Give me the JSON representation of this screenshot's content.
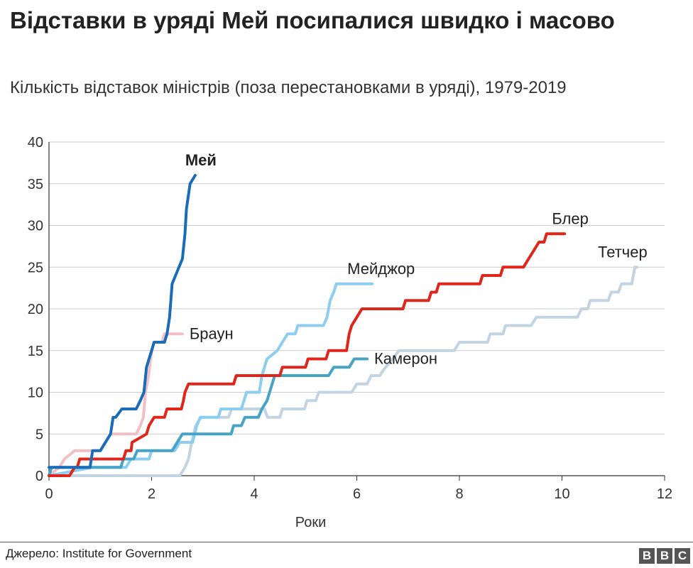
{
  "title": "Відставки в уряді Мей посипалися швидко і масово",
  "subtitle": "Кількість відставок міністрів (поза перестановками в уряді), 1979-2019",
  "source": "Джерело: Institute for Government",
  "logo_letters": [
    "B",
    "B",
    "C"
  ],
  "chart_data": {
    "type": "line",
    "xlabel": "Роки",
    "ylabel": "",
    "xlim": [
      0,
      12
    ],
    "ylim": [
      0,
      40
    ],
    "xticks": [
      0,
      2,
      4,
      6,
      8,
      10,
      12
    ],
    "yticks": [
      0,
      5,
      10,
      15,
      20,
      25,
      30,
      35,
      40
    ],
    "grid": "horizontal",
    "series": [
      {
        "name": "Тетчер",
        "color": "#c2d4e2",
        "bold": false,
        "label_align": "start",
        "points": [
          [
            0,
            0
          ],
          [
            2.55,
            0
          ],
          [
            2.65,
            1
          ],
          [
            2.72,
            2
          ],
          [
            2.78,
            4
          ],
          [
            2.86,
            6
          ],
          [
            2.96,
            7
          ],
          [
            3.5,
            7
          ],
          [
            3.56,
            8
          ],
          [
            4.2,
            8
          ],
          [
            4.26,
            7
          ],
          [
            4.5,
            7
          ],
          [
            4.55,
            8
          ],
          [
            4.98,
            8
          ],
          [
            5.03,
            9
          ],
          [
            5.2,
            9
          ],
          [
            5.26,
            10
          ],
          [
            5.9,
            10
          ],
          [
            6.0,
            11
          ],
          [
            6.2,
            11
          ],
          [
            6.28,
            12
          ],
          [
            6.45,
            12
          ],
          [
            6.5,
            12.5
          ],
          [
            6.56,
            13
          ],
          [
            6.7,
            14
          ],
          [
            6.82,
            15
          ],
          [
            7.9,
            15
          ],
          [
            8.0,
            16
          ],
          [
            8.55,
            16
          ],
          [
            8.6,
            17
          ],
          [
            8.85,
            17
          ],
          [
            8.9,
            18
          ],
          [
            9.4,
            18
          ],
          [
            9.5,
            19
          ],
          [
            10.3,
            19
          ],
          [
            10.38,
            20
          ],
          [
            10.5,
            20
          ],
          [
            10.55,
            21
          ],
          [
            10.9,
            21
          ],
          [
            10.96,
            22
          ],
          [
            11.1,
            22
          ],
          [
            11.16,
            23
          ],
          [
            11.36,
            23
          ],
          [
            11.42,
            25
          ],
          [
            11.46,
            25
          ]
        ]
      },
      {
        "name": "Браун",
        "color": "#f2c0c4",
        "bold": false,
        "label_align": "start",
        "points": [
          [
            0,
            0
          ],
          [
            0.2,
            1
          ],
          [
            0.3,
            2
          ],
          [
            0.5,
            3
          ],
          [
            1.0,
            3
          ],
          [
            1.1,
            4
          ],
          [
            1.2,
            5
          ],
          [
            1.7,
            5
          ],
          [
            1.78,
            6
          ],
          [
            1.84,
            7
          ],
          [
            1.88,
            10
          ],
          [
            1.94,
            12
          ],
          [
            1.98,
            14
          ],
          [
            2.04,
            16
          ],
          [
            2.2,
            16
          ],
          [
            2.25,
            17
          ],
          [
            2.6,
            17
          ]
        ]
      },
      {
        "name": "Мейджор",
        "color": "#8dcdf0",
        "bold": false,
        "label_align": "start",
        "points": [
          [
            0,
            0
          ],
          [
            0.85,
            1
          ],
          [
            1.5,
            1
          ],
          [
            1.6,
            2
          ],
          [
            1.95,
            2
          ],
          [
            2.0,
            3
          ],
          [
            2.45,
            3
          ],
          [
            2.55,
            4
          ],
          [
            2.8,
            4
          ],
          [
            2.88,
            6
          ],
          [
            2.95,
            7
          ],
          [
            3.3,
            7
          ],
          [
            3.35,
            8
          ],
          [
            3.75,
            8
          ],
          [
            3.8,
            9
          ],
          [
            3.85,
            10
          ],
          [
            4.1,
            10
          ],
          [
            4.15,
            12
          ],
          [
            4.25,
            14
          ],
          [
            4.45,
            15
          ],
          [
            4.55,
            16
          ],
          [
            4.65,
            17
          ],
          [
            4.8,
            17
          ],
          [
            4.85,
            18
          ],
          [
            5.35,
            18
          ],
          [
            5.42,
            19
          ],
          [
            5.48,
            21
          ],
          [
            5.55,
            22
          ],
          [
            5.6,
            23
          ],
          [
            6.3,
            23
          ]
        ]
      },
      {
        "name": "Камерон",
        "color": "#45a3c5",
        "bold": false,
        "label_align": "start",
        "points": [
          [
            0,
            0
          ],
          [
            0.05,
            1
          ],
          [
            1.4,
            1
          ],
          [
            1.45,
            2
          ],
          [
            1.65,
            2
          ],
          [
            1.72,
            3
          ],
          [
            2.4,
            3
          ],
          [
            2.5,
            4
          ],
          [
            2.6,
            5
          ],
          [
            3.55,
            5
          ],
          [
            3.6,
            6
          ],
          [
            3.75,
            6
          ],
          [
            3.82,
            7
          ],
          [
            4.08,
            7
          ],
          [
            4.15,
            8
          ],
          [
            4.25,
            9
          ],
          [
            4.3,
            10
          ],
          [
            4.35,
            11
          ],
          [
            4.4,
            12
          ],
          [
            5.45,
            12
          ],
          [
            5.55,
            13
          ],
          [
            5.85,
            13
          ],
          [
            5.95,
            14
          ],
          [
            6.2,
            14
          ]
        ]
      },
      {
        "name": "Блер",
        "color": "#e0251a",
        "bold": false,
        "label_align": "middle",
        "points": [
          [
            0,
            0
          ],
          [
            0.4,
            0
          ],
          [
            0.5,
            1
          ],
          [
            0.55,
            1
          ],
          [
            0.6,
            2
          ],
          [
            1.45,
            2
          ],
          [
            1.5,
            3
          ],
          [
            1.6,
            3
          ],
          [
            1.62,
            4
          ],
          [
            1.9,
            5
          ],
          [
            1.95,
            6
          ],
          [
            2.05,
            7
          ],
          [
            2.25,
            7
          ],
          [
            2.3,
            8
          ],
          [
            2.58,
            8
          ],
          [
            2.62,
            9
          ],
          [
            2.65,
            10
          ],
          [
            2.72,
            11
          ],
          [
            3.6,
            11
          ],
          [
            3.65,
            12
          ],
          [
            4.5,
            12
          ],
          [
            4.55,
            13
          ],
          [
            5.0,
            13
          ],
          [
            5.05,
            14
          ],
          [
            5.4,
            14
          ],
          [
            5.45,
            15
          ],
          [
            5.8,
            15
          ],
          [
            5.85,
            17
          ],
          [
            5.9,
            18
          ],
          [
            6.0,
            19
          ],
          [
            6.1,
            20
          ],
          [
            6.9,
            20
          ],
          [
            6.95,
            21
          ],
          [
            7.4,
            21
          ],
          [
            7.45,
            22
          ],
          [
            7.55,
            22
          ],
          [
            7.6,
            23
          ],
          [
            8.4,
            23
          ],
          [
            8.45,
            24
          ],
          [
            8.8,
            24
          ],
          [
            8.85,
            25
          ],
          [
            9.25,
            25
          ],
          [
            9.35,
            26
          ],
          [
            9.45,
            27
          ],
          [
            9.55,
            28
          ],
          [
            9.65,
            28
          ],
          [
            9.7,
            29
          ],
          [
            10.05,
            29
          ]
        ]
      },
      {
        "name": "Мей",
        "color": "#1a6cb8",
        "bold": true,
        "label_align": "middle",
        "points": [
          [
            0,
            1
          ],
          [
            0.8,
            1
          ],
          [
            0.85,
            3
          ],
          [
            1.0,
            3
          ],
          [
            1.1,
            4
          ],
          [
            1.2,
            5
          ],
          [
            1.25,
            7
          ],
          [
            1.3,
            7
          ],
          [
            1.42,
            8
          ],
          [
            1.7,
            8
          ],
          [
            1.78,
            9
          ],
          [
            1.85,
            10
          ],
          [
            1.9,
            13
          ],
          [
            1.95,
            14
          ],
          [
            2.05,
            16
          ],
          [
            2.25,
            16
          ],
          [
            2.3,
            17
          ],
          [
            2.35,
            19
          ],
          [
            2.4,
            23
          ],
          [
            2.6,
            26
          ],
          [
            2.65,
            29
          ],
          [
            2.68,
            32
          ],
          [
            2.75,
            35
          ],
          [
            2.85,
            36
          ]
        ]
      }
    ]
  }
}
